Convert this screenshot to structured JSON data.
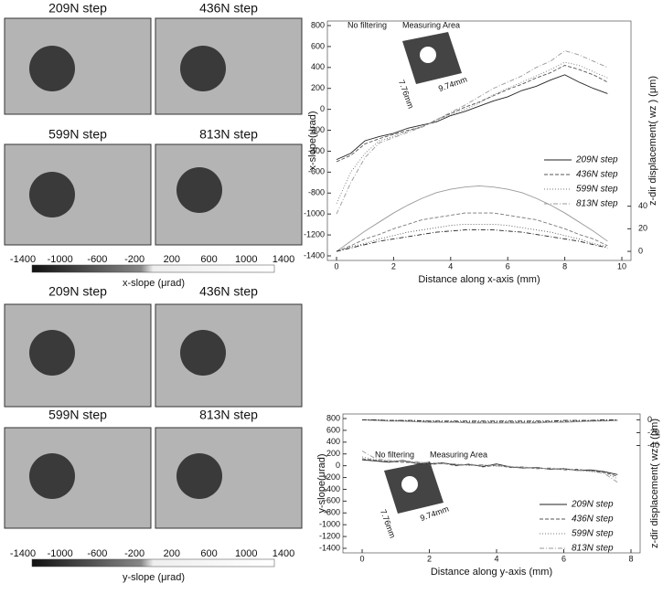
{
  "panels": [
    {
      "titles": [
        "209N step",
        "436N step",
        "599N step",
        "813N step"
      ],
      "colorbar_ticks": [
        -1400,
        -1000,
        -600,
        -200,
        200,
        600,
        1000,
        1400
      ],
      "colorbar_label": "x-slope (μrad)"
    },
    {
      "titles": [
        "209N step",
        "436N step",
        "599N step",
        "813N step"
      ],
      "colorbar_ticks": [
        -1400,
        -1000,
        -600,
        -200,
        200,
        600,
        1000,
        1400
      ],
      "colorbar_label": "y-slope (μrad)"
    }
  ],
  "chart_data": [
    {
      "type": "line",
      "annotations": [
        "No filtering",
        "Measuring Area",
        "7.76mm",
        "9.74mm"
      ],
      "x_label": "Distance along x-axis (mm)",
      "y_label": "x-slope(μrad)",
      "y2_label": "z-dir displacement( wz ) (μm)",
      "x": [
        0,
        0.5,
        1,
        1.5,
        2,
        2.5,
        3,
        3.5,
        4,
        4.5,
        5,
        5.5,
        6,
        6.5,
        7,
        7.5,
        8,
        8.5,
        9,
        9.5
      ],
      "xlim": [
        0,
        10
      ],
      "xticks": [
        0,
        2,
        4,
        6,
        8,
        10
      ],
      "ylim": [
        -1400,
        800
      ],
      "yticks": [
        -1400,
        -1200,
        -1000,
        -800,
        -600,
        -400,
        -200,
        0,
        200,
        400,
        600,
        800
      ],
      "y2lim": [
        -4,
        200
      ],
      "y2ticks": [
        0,
        20,
        40
      ],
      "series": [
        {
          "name": "209N step",
          "color": "#222",
          "values": [
            -480,
            -420,
            -300,
            -260,
            -230,
            -180,
            -150,
            -120,
            -60,
            -20,
            30,
            80,
            120,
            180,
            220,
            280,
            330,
            260,
            200,
            150
          ]
        },
        {
          "name": "436N step",
          "color": "#555",
          "values": [
            -500,
            -440,
            -330,
            -280,
            -240,
            -200,
            -170,
            -100,
            -40,
            20,
            70,
            130,
            190,
            240,
            300,
            350,
            420,
            380,
            330,
            260
          ]
        },
        {
          "name": "599N step",
          "color": "#777",
          "values": [
            -900,
            -600,
            -420,
            -300,
            -260,
            -210,
            -160,
            -110,
            -50,
            0,
            60,
            140,
            200,
            260,
            320,
            380,
            450,
            420,
            360,
            300
          ]
        },
        {
          "name": "813N step",
          "color": "#999",
          "values": [
            -1000,
            -700,
            -460,
            -320,
            -270,
            -220,
            -170,
            -100,
            -30,
            40,
            120,
            200,
            260,
            320,
            400,
            460,
            560,
            520,
            460,
            400
          ]
        },
        {
          "axis": "y2",
          "color": "#999",
          "values": [
            0,
            9,
            18,
            26,
            34,
            41,
            47,
            52,
            55,
            57,
            58,
            57,
            55,
            52,
            47,
            41,
            34,
            26,
            18,
            9
          ]
        },
        {
          "axis": "y2",
          "color": "#777",
          "values": [
            0,
            5,
            11,
            15,
            20,
            24,
            28,
            30,
            32,
            34,
            34,
            34,
            32,
            30,
            28,
            24,
            20,
            15,
            11,
            5
          ]
        },
        {
          "axis": "y2",
          "color": "#555",
          "values": [
            0,
            4,
            7,
            11,
            14,
            17,
            19,
            21,
            23,
            24,
            24,
            24,
            23,
            21,
            19,
            17,
            14,
            11,
            7,
            4
          ]
        },
        {
          "axis": "y2",
          "color": "#222",
          "values": [
            0,
            3,
            6,
            9,
            11,
            13,
            15,
            17,
            18,
            19,
            19,
            19,
            18,
            17,
            15,
            13,
            11,
            9,
            6,
            3
          ]
        }
      ]
    },
    {
      "type": "line",
      "annotations": [
        "No filtering",
        "Measuring Area",
        "7.76mm",
        "9.74mm"
      ],
      "x_label": "Distance along y-axis (mm)",
      "y_label": "y-slope(μrad)",
      "y2_label": "z-dir displacement( wz ) (μm)",
      "x": [
        0,
        0.4,
        0.8,
        1.2,
        1.6,
        2,
        2.4,
        2.8,
        3.2,
        3.6,
        4,
        4.4,
        4.8,
        5.2,
        5.6,
        6,
        6.4,
        6.8,
        7.2,
        7.6
      ],
      "xlim": [
        -0.3,
        8
      ],
      "xticks": [
        0,
        2,
        4,
        6,
        8
      ],
      "ylim": [
        -1400,
        800
      ],
      "yticks": [
        -1400,
        -1200,
        -1000,
        -800,
        -600,
        -400,
        -200,
        0,
        200,
        400,
        600,
        800
      ],
      "y2lim": [
        -200,
        2
      ],
      "y2ticks": [
        0,
        -20,
        -40
      ],
      "series": [
        {
          "name": "209N step",
          "color": "#222",
          "values": [
            100,
            80,
            60,
            90,
            40,
            30,
            50,
            10,
            20,
            -10,
            30,
            -20,
            -40,
            -30,
            -60,
            -50,
            -80,
            -70,
            -100,
            -150
          ]
        },
        {
          "name": "436N step",
          "color": "#555",
          "values": [
            120,
            90,
            70,
            60,
            50,
            20,
            40,
            0,
            30,
            -20,
            10,
            -30,
            -20,
            -50,
            -40,
            -70,
            -60,
            -90,
            -110,
            -180
          ]
        },
        {
          "name": "599N step",
          "color": "#777",
          "values": [
            150,
            100,
            80,
            70,
            60,
            40,
            30,
            20,
            0,
            10,
            -10,
            -20,
            -40,
            -30,
            -60,
            -50,
            -70,
            -100,
            -120,
            -220
          ]
        },
        {
          "name": "813N step",
          "color": "#999",
          "values": [
            250,
            120,
            90,
            80,
            70,
            50,
            40,
            30,
            10,
            20,
            0,
            -10,
            -30,
            -40,
            -50,
            -60,
            -80,
            -90,
            -130,
            -280
          ]
        },
        {
          "axis": "y2",
          "color": "#999",
          "values": [
            0,
            -1,
            -2,
            -2,
            -3,
            -4,
            -4,
            -4,
            -5,
            -5,
            -5,
            -5,
            -5,
            -5,
            -4,
            -4,
            -3,
            -2,
            -2,
            -1
          ]
        },
        {
          "axis": "y2",
          "color": "#777",
          "values": [
            0,
            -1,
            -1,
            -2,
            -2,
            -3,
            -3,
            -3,
            -4,
            -4,
            -4,
            -4,
            -4,
            -4,
            -3,
            -3,
            -2,
            -2,
            -1,
            -1
          ]
        },
        {
          "axis": "y2",
          "color": "#555",
          "values": [
            0,
            0,
            -1,
            -1,
            -2,
            -2,
            -2,
            -3,
            -3,
            -3,
            -3,
            -3,
            -3,
            -3,
            -2,
            -2,
            -2,
            -1,
            -1,
            0
          ]
        },
        {
          "axis": "y2",
          "color": "#222",
          "values": [
            0,
            0,
            -1,
            -1,
            -1,
            -2,
            -2,
            -2,
            -2,
            -2,
            -2,
            -2,
            -2,
            -2,
            -2,
            -1,
            -1,
            -1,
            0,
            0
          ]
        }
      ]
    }
  ]
}
